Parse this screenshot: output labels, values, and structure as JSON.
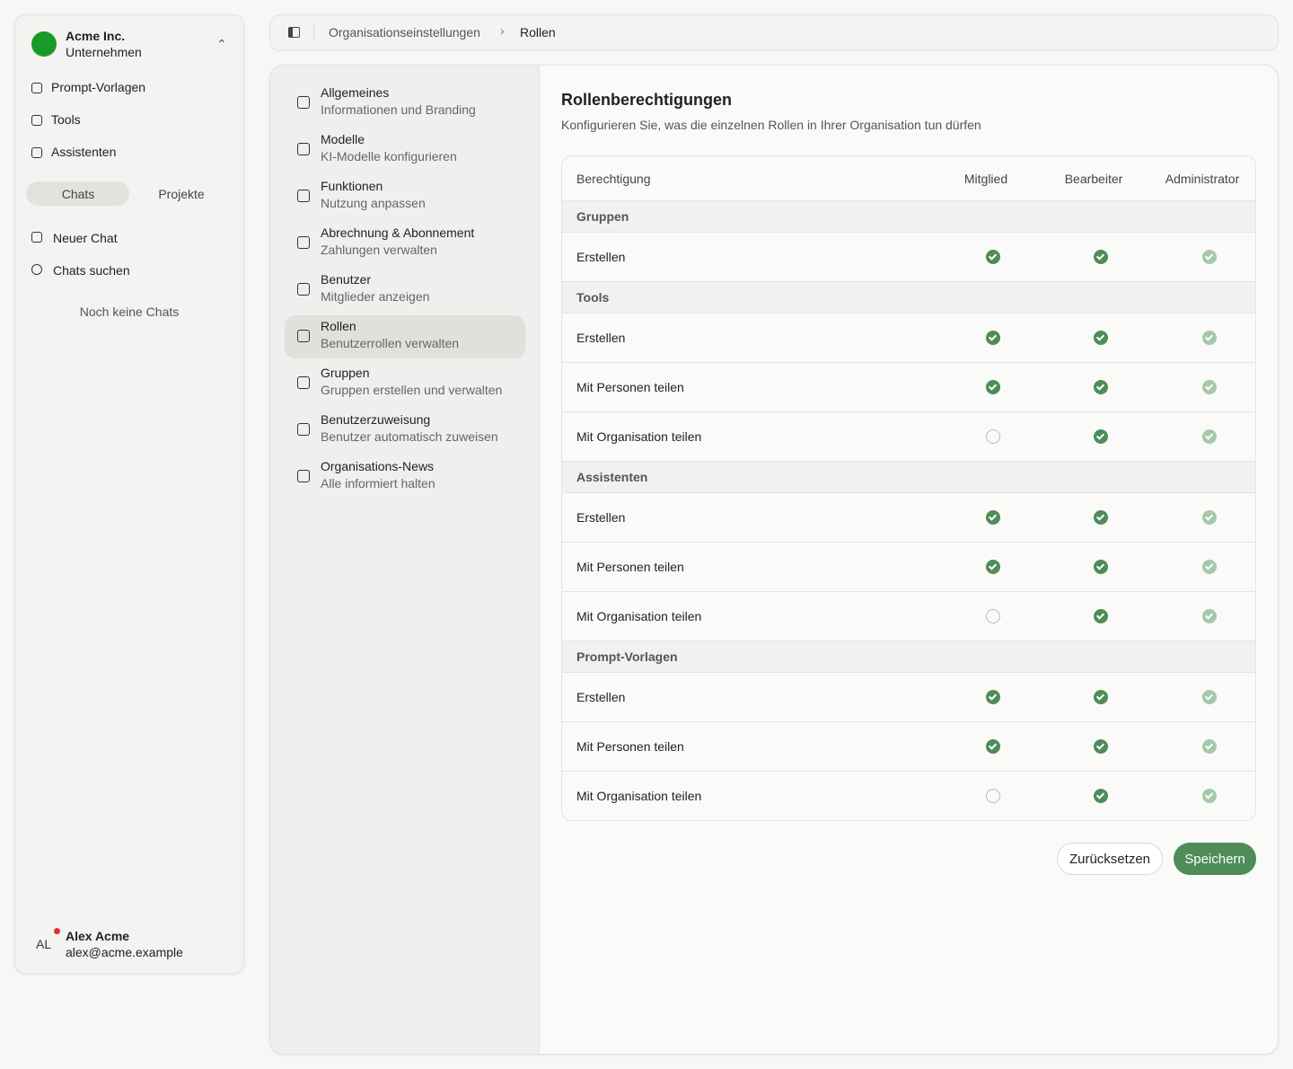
{
  "sidebar": {
    "org": {
      "name": "Acme Inc.",
      "type": "Unternehmen"
    },
    "nav": [
      "Prompt-Vorlagen",
      "Tools",
      "Assistenten"
    ],
    "tabs": [
      "Chats",
      "Projekte"
    ],
    "actions": [
      "Neuer Chat",
      "Chats suchen"
    ],
    "empty": "Noch keine Chats",
    "user": {
      "initials": "AL",
      "name": "Alex Acme",
      "email": "alex@acme.example"
    }
  },
  "breadcrumb": [
    "Organisationseinstellungen",
    "Rollen"
  ],
  "settings_nav": {
    "active": 5,
    "items": [
      {
        "title": "Allgemeines",
        "subtitle": "Informationen und Branding"
      },
      {
        "title": "Modelle",
        "subtitle": "KI-Modelle konfigurieren"
      },
      {
        "title": "Funktionen",
        "subtitle": "Nutzung anpassen"
      },
      {
        "title": "Abrechnung & Abonnement",
        "subtitle": "Zahlungen verwalten"
      },
      {
        "title": "Benutzer",
        "subtitle": "Mitglieder anzeigen"
      },
      {
        "title": "Rollen",
        "subtitle": "Benutzerrollen verwalten"
      },
      {
        "title": "Gruppen",
        "subtitle": "Gruppen erstellen und verwalten"
      },
      {
        "title": "Benutzerzuweisung",
        "subtitle": "Benutzer automatisch zuweisen"
      },
      {
        "title": "Organisations-News",
        "subtitle": "Alle informiert halten"
      }
    ]
  },
  "content": {
    "title": "Rollenberechtigungen",
    "subtitle": "Konfigurieren Sie, was die einzelnen Rollen in Ihrer Organisation tun dürfen",
    "table": {
      "columns": [
        "Berechtigung",
        "Mitglied",
        "Bearbeiter",
        "Administrator"
      ],
      "groups": [
        {
          "name": "Gruppen",
          "rows": [
            {
              "label": "Erstellen",
              "grants": [
                true,
                true,
                true
              ]
            }
          ]
        },
        {
          "name": "Tools",
          "rows": [
            {
              "label": "Erstellen",
              "grants": [
                true,
                true,
                true
              ]
            },
            {
              "label": "Mit Personen teilen",
              "grants": [
                true,
                true,
                true
              ]
            },
            {
              "label": "Mit Organisation teilen",
              "grants": [
                false,
                true,
                true
              ]
            }
          ]
        },
        {
          "name": "Assistenten",
          "rows": [
            {
              "label": "Erstellen",
              "grants": [
                true,
                true,
                true
              ]
            },
            {
              "label": "Mit Personen teilen",
              "grants": [
                true,
                true,
                true
              ]
            },
            {
              "label": "Mit Organisation teilen",
              "grants": [
                false,
                true,
                true
              ]
            }
          ]
        },
        {
          "name": "Prompt-Vorlagen",
          "rows": [
            {
              "label": "Erstellen",
              "grants": [
                true,
                true,
                true
              ]
            },
            {
              "label": "Mit Personen teilen",
              "grants": [
                true,
                true,
                true
              ]
            },
            {
              "label": "Mit Organisation teilen",
              "grants": [
                false,
                true,
                true
              ]
            }
          ]
        }
      ]
    },
    "buttons": [
      "Zurücksetzen",
      "Speichern"
    ]
  }
}
